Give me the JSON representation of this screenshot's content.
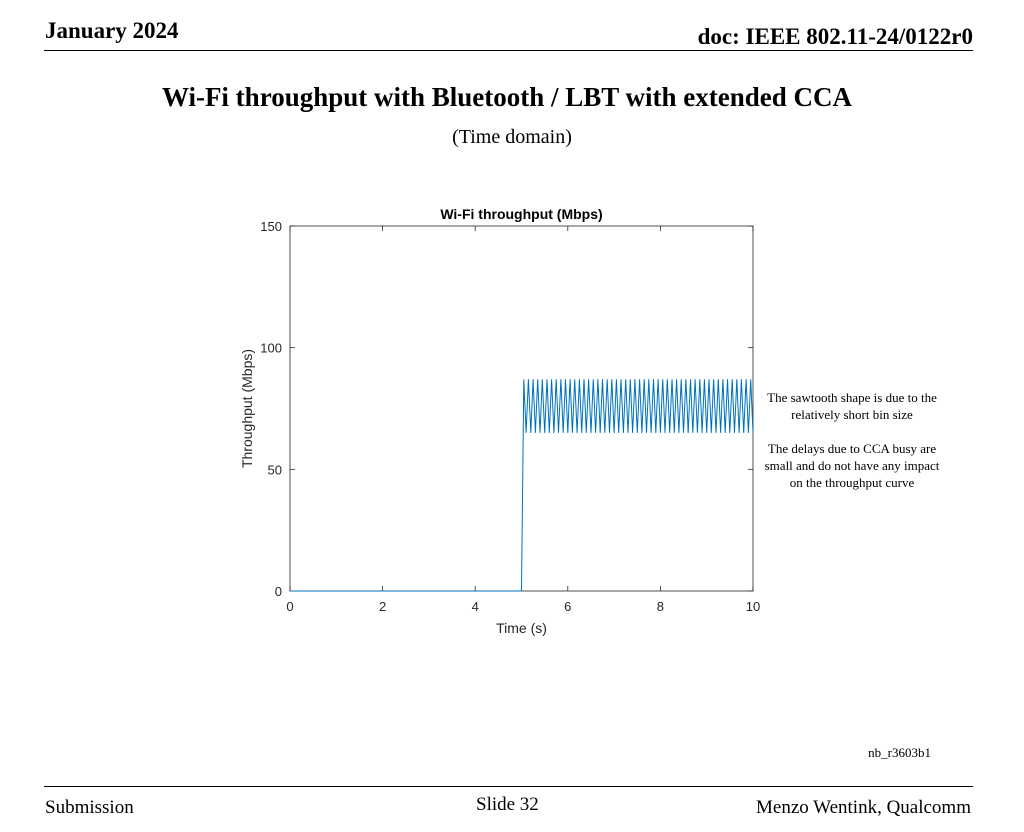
{
  "header": {
    "date": "January 2024",
    "doc": "doc: IEEE 802.11-24/0122r0"
  },
  "slide": {
    "title": "Wi-Fi throughput with Bluetooth / LBT with extended CCA",
    "subtitle": "(Time domain)"
  },
  "notes": {
    "line1": "The sawtooth shape is due to the relatively short bin size",
    "line2": "The delays due to CCA busy are small and do not have any impact on the throughput curve"
  },
  "code_label": "nb_r3603b1",
  "footer": {
    "left": "Submission",
    "center": "Slide 32",
    "right": "Menzo Wentink, Qualcomm"
  },
  "colors": {
    "line": "#0072BD",
    "axis": "#262626"
  },
  "chart_data": {
    "type": "line",
    "title": "Wi-Fi throughput (Mbps)",
    "xlabel": "Time (s)",
    "ylabel": "Throughput (Mbps)",
    "xlim": [
      0,
      10
    ],
    "ylim": [
      0,
      150
    ],
    "xticks": [
      0,
      2,
      4,
      6,
      8,
      10
    ],
    "yticks": [
      0,
      50,
      100,
      150
    ],
    "grid": false,
    "series": [
      {
        "points": [
          [
            0,
            0
          ],
          [
            4.98,
            0
          ],
          [
            5.0,
            0
          ],
          [
            5.05,
            87
          ],
          [
            5.1,
            65
          ],
          [
            5.15,
            87
          ],
          [
            5.2,
            65
          ],
          [
            5.25,
            87
          ],
          [
            5.3,
            65
          ],
          [
            5.35,
            87
          ],
          [
            5.4,
            65
          ],
          [
            5.45,
            87
          ],
          [
            5.5,
            65
          ],
          [
            5.55,
            87
          ],
          [
            5.6,
            65
          ],
          [
            5.65,
            87
          ],
          [
            5.7,
            65
          ],
          [
            5.75,
            87
          ],
          [
            5.8,
            65
          ],
          [
            5.85,
            87
          ],
          [
            5.9,
            65
          ],
          [
            5.95,
            87
          ],
          [
            6.0,
            65
          ],
          [
            6.05,
            87
          ],
          [
            6.1,
            65
          ],
          [
            6.15,
            87
          ],
          [
            6.2,
            65
          ],
          [
            6.25,
            87
          ],
          [
            6.3,
            65
          ],
          [
            6.35,
            87
          ],
          [
            6.4,
            65
          ],
          [
            6.45,
            87
          ],
          [
            6.5,
            65
          ],
          [
            6.55,
            87
          ],
          [
            6.6,
            65
          ],
          [
            6.65,
            87
          ],
          [
            6.7,
            65
          ],
          [
            6.75,
            87
          ],
          [
            6.8,
            65
          ],
          [
            6.85,
            87
          ],
          [
            6.9,
            65
          ],
          [
            6.95,
            87
          ],
          [
            7.0,
            65
          ],
          [
            7.05,
            87
          ],
          [
            7.1,
            65
          ],
          [
            7.15,
            87
          ],
          [
            7.2,
            65
          ],
          [
            7.25,
            87
          ],
          [
            7.3,
            65
          ],
          [
            7.35,
            87
          ],
          [
            7.4,
            65
          ],
          [
            7.45,
            87
          ],
          [
            7.5,
            65
          ],
          [
            7.55,
            87
          ],
          [
            7.6,
            65
          ],
          [
            7.65,
            87
          ],
          [
            7.7,
            65
          ],
          [
            7.75,
            87
          ],
          [
            7.8,
            65
          ],
          [
            7.85,
            87
          ],
          [
            7.9,
            65
          ],
          [
            7.95,
            87
          ],
          [
            8.0,
            65
          ],
          [
            8.05,
            87
          ],
          [
            8.1,
            65
          ],
          [
            8.15,
            87
          ],
          [
            8.2,
            65
          ],
          [
            8.25,
            87
          ],
          [
            8.3,
            65
          ],
          [
            8.35,
            87
          ],
          [
            8.4,
            65
          ],
          [
            8.45,
            87
          ],
          [
            8.5,
            65
          ],
          [
            8.55,
            87
          ],
          [
            8.6,
            65
          ],
          [
            8.65,
            87
          ],
          [
            8.7,
            65
          ],
          [
            8.75,
            87
          ],
          [
            8.8,
            65
          ],
          [
            8.85,
            87
          ],
          [
            8.9,
            65
          ],
          [
            8.95,
            87
          ],
          [
            9.0,
            65
          ],
          [
            9.05,
            87
          ],
          [
            9.1,
            65
          ],
          [
            9.15,
            87
          ],
          [
            9.2,
            65
          ],
          [
            9.25,
            87
          ],
          [
            9.3,
            65
          ],
          [
            9.35,
            87
          ],
          [
            9.4,
            65
          ],
          [
            9.45,
            87
          ],
          [
            9.5,
            65
          ],
          [
            9.55,
            87
          ],
          [
            9.6,
            65
          ],
          [
            9.65,
            87
          ],
          [
            9.7,
            65
          ],
          [
            9.75,
            87
          ],
          [
            9.8,
            65
          ],
          [
            9.85,
            87
          ],
          [
            9.9,
            65
          ],
          [
            9.95,
            87
          ],
          [
            10.0,
            65
          ]
        ]
      }
    ]
  }
}
